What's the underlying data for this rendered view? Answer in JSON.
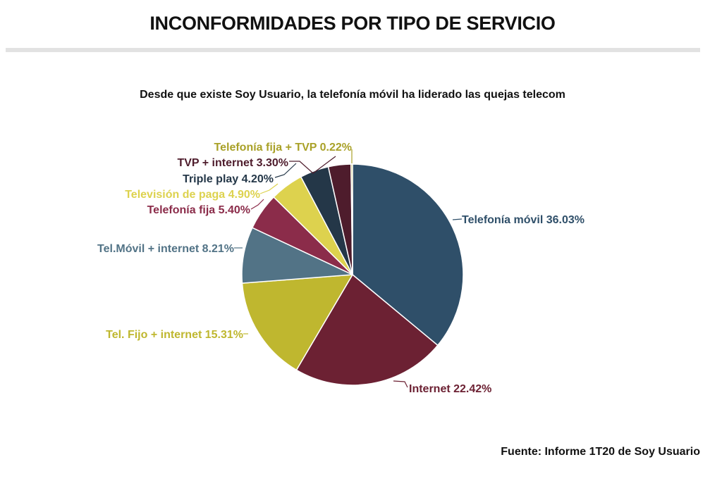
{
  "header": {
    "title": "INCONFORMIDADES POR TIPO DE SERVICIO"
  },
  "chart_data": {
    "type": "pie",
    "subtitle": "Desde que existe Soy Usuario, la telefonía móvil ha liderado las quejas telecom",
    "source": "Fuente: Informe 1T20 de Soy Usuario",
    "slices": [
      {
        "name": "Telefonía móvil",
        "value": 36.03,
        "label": "Telefonía móvil 36.03%",
        "color": "#2f4f69"
      },
      {
        "name": "Internet",
        "value": 22.42,
        "label": "Internet 22.42%",
        "color": "#6c2133"
      },
      {
        "name": "Tel. Fijo + internet",
        "value": 15.31,
        "label": "Tel. Fijo + internet 15.31%",
        "color": "#bfb72f"
      },
      {
        "name": "Tel.Móvil + internet",
        "value": 8.21,
        "label": "Tel.Móvil + internet 8.21%",
        "color": "#527386"
      },
      {
        "name": "Telefonía fija",
        "value": 5.4,
        "label": "Telefonía fija 5.40%",
        "color": "#8b2c4a"
      },
      {
        "name": "Televisión de paga",
        "value": 4.9,
        "label": "Televisión de paga 4.90%",
        "color": "#ddd24e"
      },
      {
        "name": "Triple play",
        "value": 4.2,
        "label": "Triple play 4.20%",
        "color": "#243748"
      },
      {
        "name": "TVP + internet",
        "value": 3.3,
        "label": "TVP + internet 3.30%",
        "color": "#4e1c2c"
      },
      {
        "name": "Telefonía fija + TVP",
        "value": 0.22,
        "label": "Telefonía fija + TVP 0.22%",
        "color": "#a9a128"
      }
    ]
  }
}
